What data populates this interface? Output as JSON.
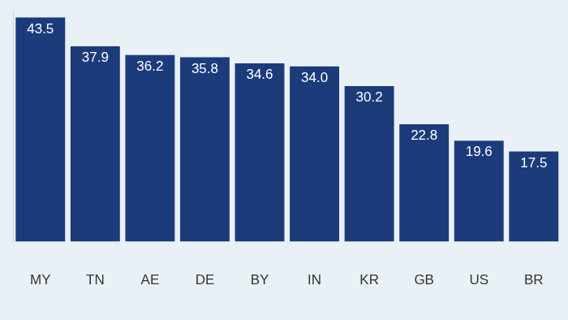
{
  "chart_data": {
    "type": "bar",
    "categories": [
      "MY",
      "TN",
      "AE",
      "DE",
      "BY",
      "IN",
      "KR",
      "GB",
      "US",
      "BR"
    ],
    "values": [
      43.5,
      37.9,
      36.2,
      35.8,
      34.6,
      34.0,
      30.2,
      22.8,
      19.6,
      17.5
    ],
    "value_labels": [
      "43.5",
      "37.9",
      "36.2",
      "35.8",
      "34.6",
      "34.0",
      "30.2",
      "22.8",
      "19.6",
      "17.5"
    ],
    "color": "#1b3b7b",
    "ylim": [
      0,
      45
    ],
    "grid": false,
    "data_labels": true,
    "tick_labels": "x"
  }
}
